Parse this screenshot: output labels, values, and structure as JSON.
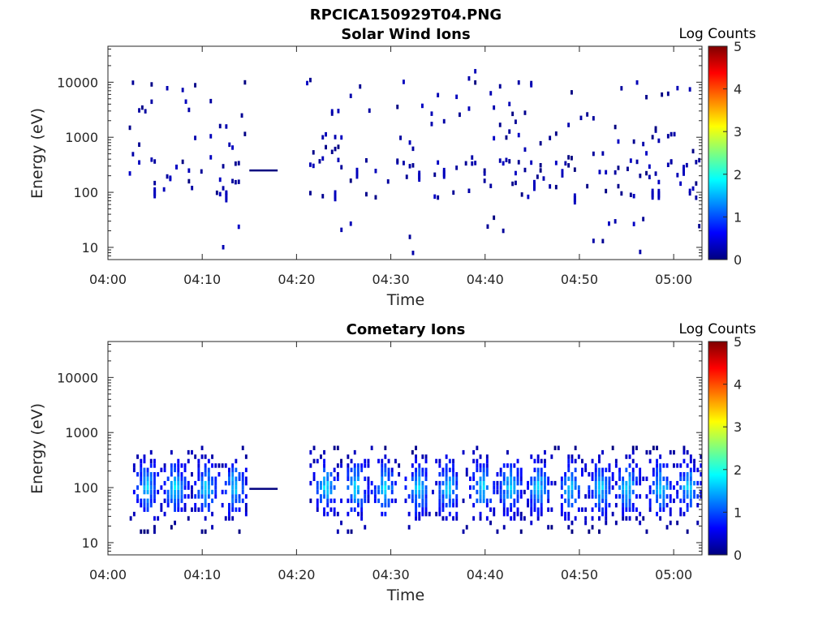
{
  "figure_title": "RPCICA150929T04.PNG",
  "colormap": [
    "#00007f",
    "#0000ff",
    "#007fff",
    "#00ffff",
    "#7fff7f",
    "#ffff00",
    "#ff7f00",
    "#ff0000",
    "#7f0000"
  ],
  "chart_data": [
    {
      "type": "heatmap",
      "title": "Solar Wind Ions",
      "xlabel": "Time",
      "ylabel": "Energy (eV)",
      "x_ticks": [
        "04:00",
        "04:10",
        "04:20",
        "04:30",
        "04:40",
        "04:50",
        "05:00"
      ],
      "xlim": [
        "04:00",
        "05:03"
      ],
      "y_scale": "log",
      "y_ticks": [
        "10",
        "100",
        "1000",
        "10000"
      ],
      "ylim": [
        6,
        45000
      ],
      "colorbar": {
        "label": "Log Counts",
        "range": [
          0,
          5
        ],
        "ticks": [
          "0",
          "1",
          "2",
          "3",
          "4",
          "5"
        ]
      },
      "gap": [
        "04:18",
        "04:21"
      ],
      "flat_line": {
        "from": "04:15",
        "to": "04:18",
        "energy_eV": 250,
        "log_counts": 0
      },
      "dominant_value": "sparse, log counts near 0"
    },
    {
      "type": "heatmap",
      "title": "Cometary Ions",
      "xlabel": "Time",
      "ylabel": "Energy (eV)",
      "x_ticks": [
        "04:00",
        "04:10",
        "04:20",
        "04:30",
        "04:40",
        "04:50",
        "05:00"
      ],
      "xlim": [
        "04:00",
        "05:03"
      ],
      "y_scale": "log",
      "y_ticks": [
        "10",
        "100",
        "1000",
        "10000"
      ],
      "ylim": [
        6,
        45000
      ],
      "colorbar": {
        "label": "Log Counts",
        "range": [
          0,
          5
        ],
        "ticks": [
          "0",
          "1",
          "2",
          "3",
          "4",
          "5"
        ]
      },
      "gap": [
        "04:18",
        "04:21"
      ],
      "flat_line": {
        "from": "04:15",
        "to": "04:18",
        "energy_eV": 95,
        "log_counts": 0
      },
      "energy_band_eV": [
        15,
        550
      ],
      "peak_energy_eV": 100,
      "dominant_value": "log counts 0 to 2, peak near 100 eV"
    }
  ]
}
